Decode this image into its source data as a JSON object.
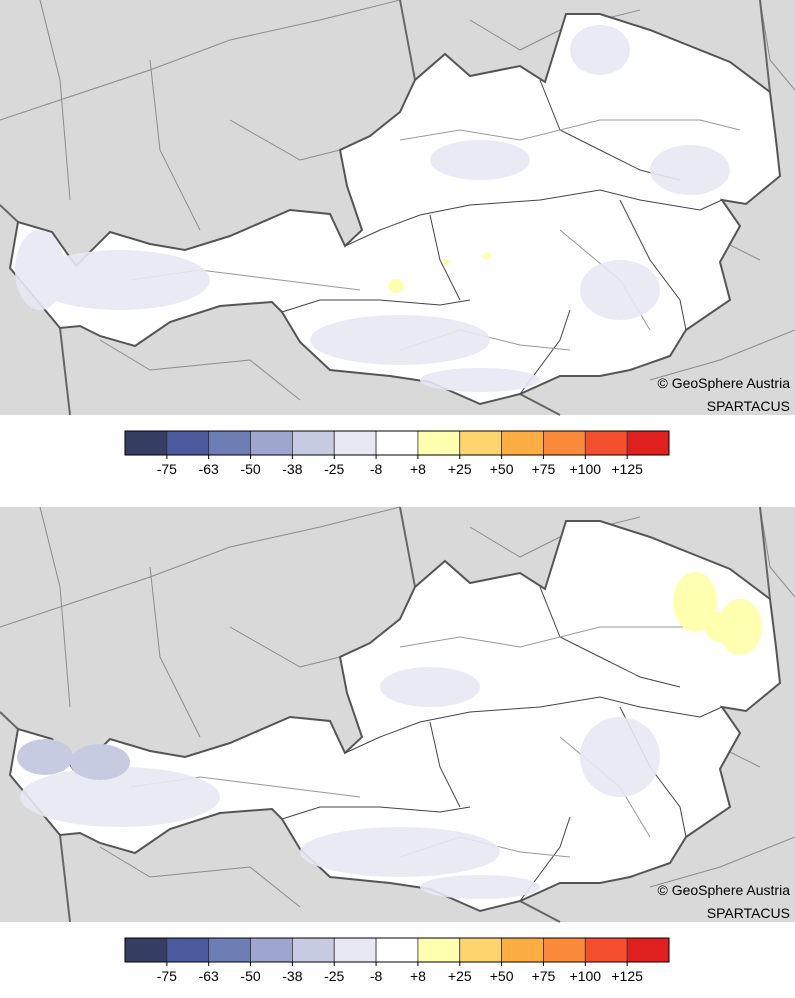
{
  "panels": [
    {
      "credit": [
        "© GeoSphere Austria",
        "SPARTACUS"
      ],
      "legend": {
        "colors": [
          "#363f63",
          "#4b5a9c",
          "#6f7db5",
          "#9ea6cf",
          "#c7cbe2",
          "#e7e8f3",
          "#ffffff",
          "#ffffb0",
          "#fed46f",
          "#fcae45",
          "#fb8a3a",
          "#f4502f",
          "#e0201f"
        ],
        "labels": [
          "-75",
          "-63",
          "-50",
          "-38",
          "-25",
          "-8",
          "+8",
          "+25",
          "+50",
          "+75",
          "+100",
          "+125"
        ]
      }
    },
    {
      "credit": [
        "© GeoSphere Austria",
        "SPARTACUS"
      ],
      "legend": {
        "colors": [
          "#363f63",
          "#4b5a9c",
          "#6f7db5",
          "#9ea6cf",
          "#c7cbe2",
          "#e7e8f3",
          "#ffffff",
          "#ffffb0",
          "#fed46f",
          "#fcae45",
          "#fb8a3a",
          "#f4502f",
          "#e0201f"
        ],
        "labels": [
          "-75",
          "-63",
          "-50",
          "-38",
          "-25",
          "-8",
          "+8",
          "+25",
          "+50",
          "+75",
          "+100",
          "+125"
        ]
      }
    }
  ]
}
